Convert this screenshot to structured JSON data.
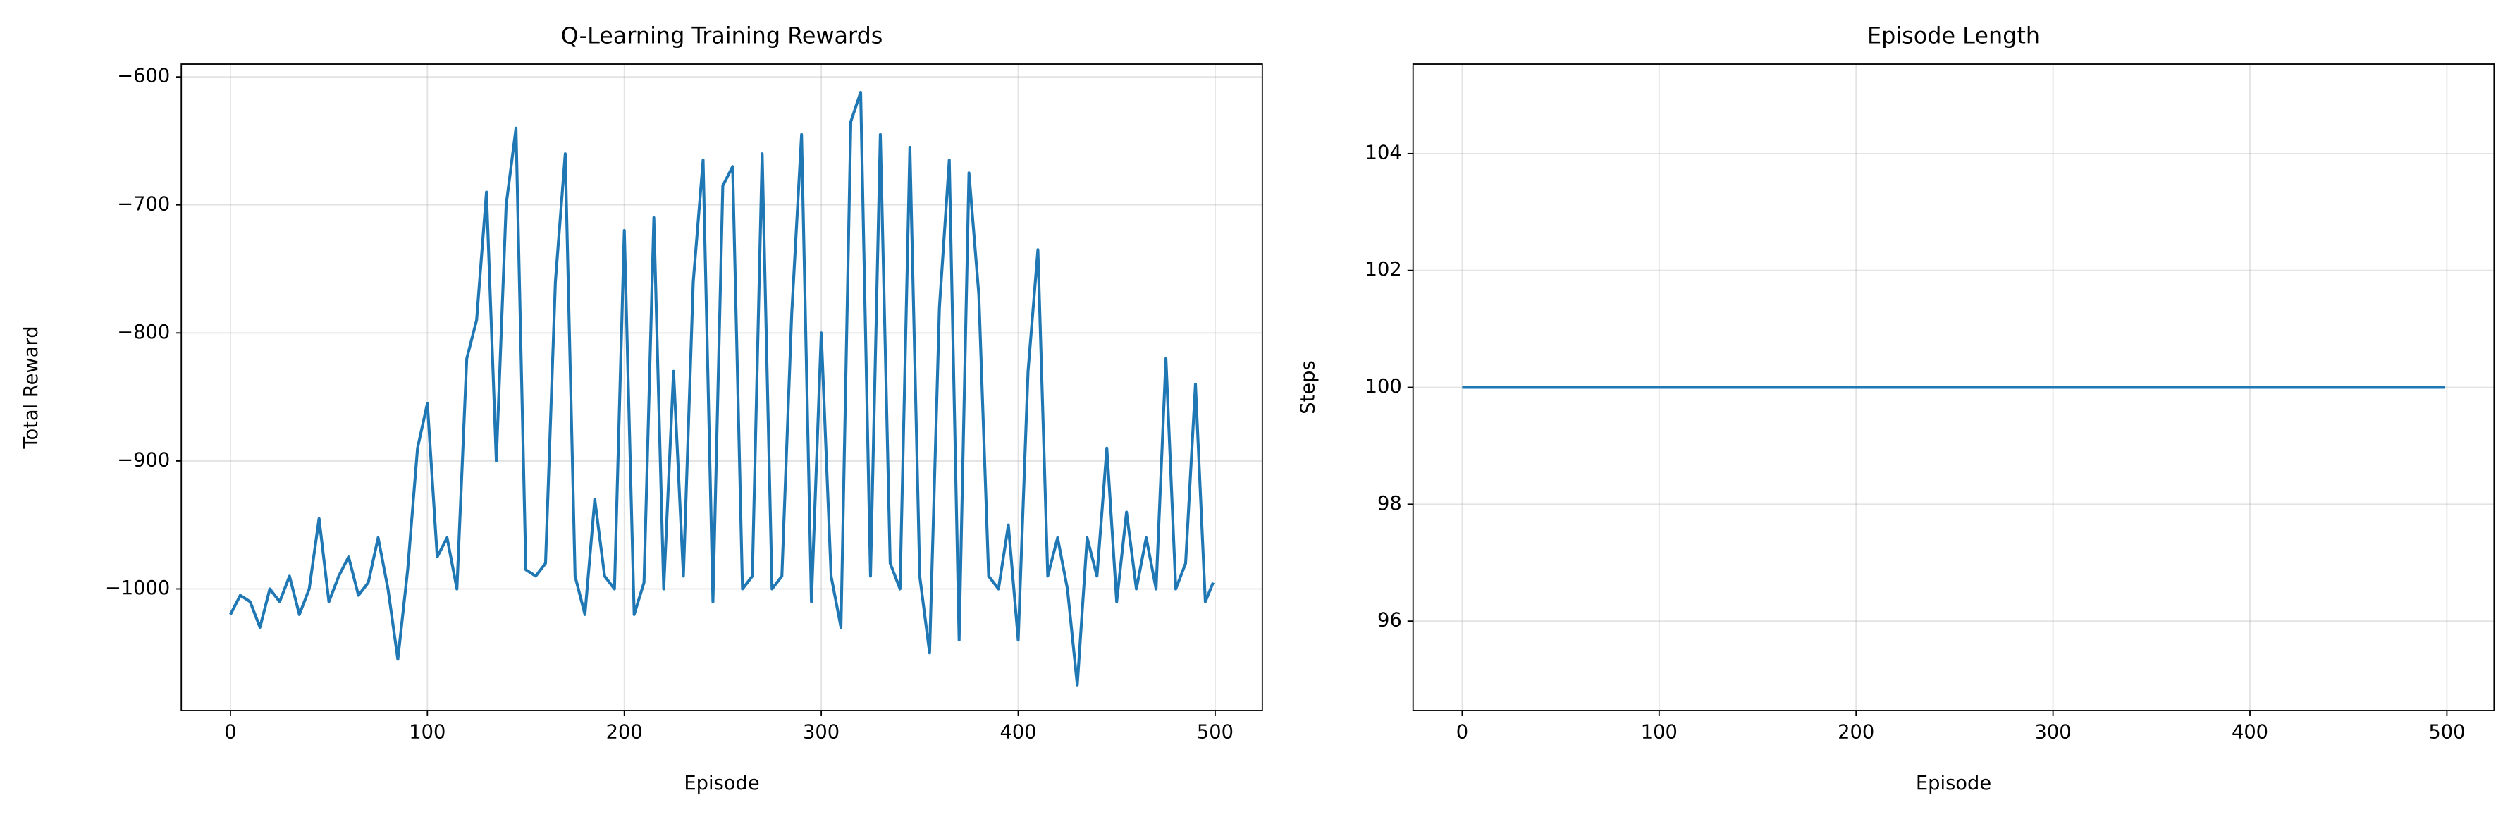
{
  "chart_data": [
    {
      "type": "line",
      "title": "Q-Learning Training Rewards",
      "x_label": "Episode",
      "y_label": "Total Reward",
      "x": [
        0,
        5,
        10,
        15,
        20,
        25,
        30,
        35,
        40,
        45,
        50,
        55,
        60,
        65,
        70,
        75,
        80,
        85,
        90,
        95,
        100,
        105,
        110,
        115,
        120,
        125,
        130,
        135,
        140,
        145,
        150,
        155,
        160,
        165,
        170,
        175,
        180,
        185,
        190,
        195,
        200,
        205,
        210,
        215,
        220,
        225,
        230,
        235,
        240,
        245,
        250,
        255,
        260,
        265,
        270,
        275,
        280,
        285,
        290,
        295,
        300,
        305,
        310,
        315,
        320,
        325,
        330,
        335,
        340,
        345,
        350,
        355,
        360,
        365,
        370,
        375,
        380,
        385,
        390,
        395,
        400,
        405,
        410,
        415,
        420,
        425,
        430,
        435,
        440,
        445,
        450,
        455,
        460,
        465,
        470,
        475,
        480,
        485,
        490,
        495,
        499
      ],
      "series": [
        {
          "name": "Total Reward",
          "color": "#1f77b4",
          "values": [
            -1020,
            -1005,
            -1010,
            -1030,
            -1000,
            -1010,
            -990,
            -1020,
            -1000,
            -945,
            -1010,
            -990,
            -975,
            -1005,
            -995,
            -960,
            -1000,
            -1055,
            -985,
            -890,
            -855,
            -975,
            -960,
            -1000,
            -820,
            -790,
            -690,
            -900,
            -700,
            -640,
            -985,
            -990,
            -980,
            -760,
            -660,
            -990,
            -1020,
            -930,
            -990,
            -1000,
            -720,
            -1020,
            -995,
            -710,
            -1000,
            -830,
            -990,
            -760,
            -665,
            -1010,
            -685,
            -670,
            -1000,
            -990,
            -660,
            -1000,
            -990,
            -785,
            -645,
            -1010,
            -800,
            -990,
            -1030,
            -635,
            -612,
            -990,
            -645,
            -980,
            -1000,
            -655,
            -990,
            -1050,
            -780,
            -665,
            -1040,
            -675,
            -770,
            -990,
            -1000,
            -950,
            -1040,
            -830,
            -735,
            -990,
            -960,
            -1000,
            -1075,
            -960,
            -990,
            -890,
            -1010,
            -940,
            -1000,
            -960,
            -1000,
            -820,
            -1000,
            -980,
            -840,
            -1010,
            -995
          ]
        }
      ],
      "xlim": [
        -24.95,
        523.95
      ],
      "xticks": [
        0,
        100,
        200,
        300,
        400,
        500
      ],
      "ylim": [
        -1095,
        -590
      ],
      "yticks": [
        {
          "value": -1000,
          "label": "−1000"
        },
        {
          "value": -900,
          "label": "−900"
        },
        {
          "value": -800,
          "label": "−800"
        },
        {
          "value": -700,
          "label": "−700"
        },
        {
          "value": -600,
          "label": "−600"
        }
      ],
      "grid": true
    },
    {
      "type": "line",
      "title": "Episode Length",
      "x_label": "Episode",
      "y_label": "Steps",
      "x": [
        0,
        499
      ],
      "series": [
        {
          "name": "Steps",
          "color": "#1f77b4",
          "values": [
            100,
            100
          ]
        }
      ],
      "xlim": [
        -24.95,
        523.95
      ],
      "xticks": [
        0,
        100,
        200,
        300,
        400,
        500
      ],
      "ylim": [
        94.47,
        105.53
      ],
      "yticks": [
        96,
        98,
        100,
        102,
        104
      ],
      "grid": true
    }
  ]
}
